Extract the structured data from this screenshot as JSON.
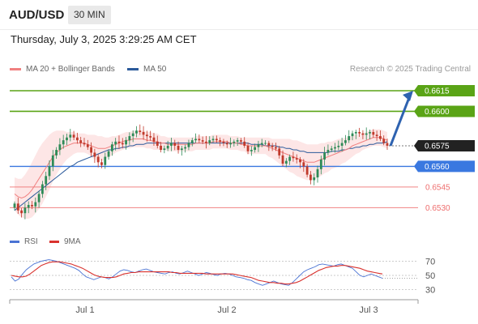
{
  "header": {
    "symbol": "AUD/USD",
    "timeframe": "30 MIN",
    "datetime": "Thursday, July 3, 2025 3:29:25 AM CET"
  },
  "legend": {
    "ma20_label": "MA 20 + Bollinger Bands",
    "ma50_label": "MA 50",
    "credit": "Research © 2025 Trading Central"
  },
  "rsi_legend": {
    "rsi_label": "RSI",
    "ma_label": "9MA"
  },
  "colors": {
    "ma20": "#f08080",
    "ma50": "#2b5a9b",
    "bollinger_fill": "#fde3e3",
    "candle_up": "#2e8b57",
    "candle_down": "#c0392b",
    "target_green": "#5aa416",
    "pivot_blue": "#3a78e0",
    "support_red": "#ee6e6e",
    "current_price": "#222222",
    "rsi": "#4a73d4",
    "rsi_ma": "#d9322e",
    "arrow": "#2e62b0"
  },
  "chart_data": {
    "type": "candlestick",
    "price_range": [
      0.6522,
      0.6625
    ],
    "x_labels": [
      "Jul 1",
      "Jul 2",
      "Jul 3"
    ],
    "levels": [
      {
        "value": 0.6615,
        "label": "0.6615",
        "kind": "target"
      },
      {
        "value": 0.66,
        "label": "0.6600",
        "kind": "target"
      },
      {
        "value": 0.6575,
        "label": "0.6575",
        "kind": "current"
      },
      {
        "value": 0.656,
        "label": "0.6560",
        "kind": "pivot"
      },
      {
        "value": 0.6545,
        "label": "0.6545",
        "kind": "support"
      },
      {
        "value": 0.653,
        "label": "0.6530",
        "kind": "support"
      }
    ],
    "price_path": [
      0.6533,
      0.6528,
      0.6526,
      0.653,
      0.6532,
      0.6531,
      0.6534,
      0.654,
      0.6547,
      0.6553,
      0.656,
      0.6568,
      0.6572,
      0.6576,
      0.6579,
      0.6581,
      0.6583,
      0.6581,
      0.6579,
      0.6577,
      0.6576,
      0.6574,
      0.657,
      0.6567,
      0.6563,
      0.6561,
      0.6567,
      0.6571,
      0.6576,
      0.6578,
      0.6577,
      0.6576,
      0.6579,
      0.6582,
      0.6584,
      0.6586,
      0.6585,
      0.6583,
      0.6582,
      0.6581,
      0.6578,
      0.6575,
      0.6572,
      0.6573,
      0.6575,
      0.6577,
      0.6575,
      0.6572,
      0.6573,
      0.6574,
      0.6577,
      0.6579,
      0.658,
      0.6579,
      0.6578,
      0.6577,
      0.6579,
      0.658,
      0.6579,
      0.6578,
      0.6577,
      0.6576,
      0.6577,
      0.6578,
      0.6579,
      0.6578,
      0.6575,
      0.6571,
      0.6572,
      0.6574,
      0.6576,
      0.6577,
      0.6577,
      0.6575,
      0.6574,
      0.6573,
      0.6568,
      0.6562,
      0.6564,
      0.6567,
      0.6566,
      0.6565,
      0.6563,
      0.656,
      0.6554,
      0.655,
      0.6552,
      0.6558,
      0.6565,
      0.657,
      0.6572,
      0.6573,
      0.6574,
      0.6575,
      0.6577,
      0.6579,
      0.6582,
      0.6584,
      0.6585,
      0.6584,
      0.6583,
      0.6584,
      0.6585,
      0.6583,
      0.6582,
      0.658,
      0.6577,
      0.6575
    ],
    "ma20": [
      0.654,
      0.6538,
      0.6537,
      0.6538,
      0.654,
      0.6543,
      0.6547,
      0.6551,
      0.6555,
      0.6559,
      0.6563,
      0.6567,
      0.657,
      0.6572,
      0.6574,
      0.6575,
      0.6576,
      0.6577,
      0.6577,
      0.6577,
      0.6577,
      0.6576,
      0.6575,
      0.6574,
      0.6573,
      0.6573,
      0.6573,
      0.6574,
      0.6575,
      0.6576,
      0.6577,
      0.6578,
      0.6579,
      0.6579,
      0.658,
      0.658,
      0.658,
      0.658,
      0.6579,
      0.6579,
      0.6578,
      0.6578,
      0.6577,
      0.6577,
      0.6576,
      0.6576,
      0.6576,
      0.6576,
      0.6576,
      0.6576,
      0.6576,
      0.6576,
      0.6577,
      0.6577,
      0.6577,
      0.6577,
      0.6577,
      0.6578,
      0.6578,
      0.6578,
      0.6578,
      0.6578,
      0.6577,
      0.6577,
      0.6577,
      0.6576,
      0.6576,
      0.6575,
      0.6575,
      0.6575,
      0.6575,
      0.6575,
      0.6575,
      0.6574,
      0.6573,
      0.6572,
      0.6571,
      0.657,
      0.6569,
      0.6568,
      0.6567,
      0.6566,
      0.6565,
      0.6564,
      0.6563,
      0.6563,
      0.6563,
      0.6564,
      0.6565,
      0.6566,
      0.6567,
      0.6568,
      0.6569,
      0.657,
      0.6571,
      0.6572,
      0.6573,
      0.6575,
      0.6576,
      0.6577,
      0.6578,
      0.6579,
      0.658,
      0.6581,
      0.6581,
      0.6581,
      0.658,
      0.6579
    ],
    "ma50": [
      0.6528,
      0.653,
      0.6532,
      0.6534,
      0.6536,
      0.6538,
      0.654,
      0.6542,
      0.6544,
      0.6546,
      0.6548,
      0.655,
      0.6552,
      0.6554,
      0.6556,
      0.6558,
      0.656,
      0.6561,
      0.6563,
      0.6564,
      0.6565,
      0.6566,
      0.6567,
      0.6568,
      0.6569,
      0.657,
      0.6571,
      0.6572,
      0.6572,
      0.6573,
      0.6573,
      0.6574,
      0.6574,
      0.6575,
      0.6575,
      0.6576,
      0.6576,
      0.6576,
      0.6577,
      0.6577,
      0.6577,
      0.6577,
      0.6577,
      0.6577,
      0.6577,
      0.6577,
      0.6577,
      0.6577,
      0.6577,
      0.6577,
      0.6577,
      0.6577,
      0.6577,
      0.6577,
      0.6577,
      0.6577,
      0.6577,
      0.6577,
      0.6577,
      0.6577,
      0.6577,
      0.6577,
      0.6577,
      0.6577,
      0.6577,
      0.6577,
      0.6577,
      0.6577,
      0.6576,
      0.6576,
      0.6576,
      0.6576,
      0.6575,
      0.6575,
      0.6575,
      0.6575,
      0.6574,
      0.6574,
      0.6573,
      0.6573,
      0.6572,
      0.6572,
      0.6571,
      0.6571,
      0.657,
      0.657,
      0.657,
      0.657,
      0.657,
      0.657,
      0.657,
      0.6571,
      0.6571,
      0.6571,
      0.6572,
      0.6572,
      0.6573,
      0.6573,
      0.6574,
      0.6574,
      0.6575,
      0.6575,
      0.6576,
      0.6576,
      0.6577,
      0.6577,
      0.6577,
      0.6578
    ],
    "bollinger_width": [
      0.0012,
      0.0013,
      0.0014,
      0.0016,
      0.0018,
      0.002,
      0.0021,
      0.0022,
      0.0022,
      0.0021,
      0.002,
      0.0018,
      0.0016,
      0.0014,
      0.0012,
      0.001,
      0.0009,
      0.0008,
      0.0007,
      0.0007,
      0.0007,
      0.0007,
      0.0008,
      0.0009,
      0.0009,
      0.0009,
      0.0008,
      0.0007,
      0.0007,
      0.0006,
      0.0006,
      0.0006,
      0.0006,
      0.0006,
      0.0006,
      0.0006,
      0.0006,
      0.0006,
      0.0006,
      0.0006,
      0.0006,
      0.0006,
      0.0005,
      0.0005,
      0.0005,
      0.0005,
      0.0005,
      0.0005,
      0.0005,
      0.0005,
      0.0005,
      0.0005,
      0.0005,
      0.0005,
      0.0005,
      0.0005,
      0.0005,
      0.0005,
      0.0005,
      0.0005,
      0.0005,
      0.0005,
      0.0005,
      0.0005,
      0.0005,
      0.0005,
      0.0005,
      0.0006,
      0.0006,
      0.0006,
      0.0006,
      0.0006,
      0.0006,
      0.0007,
      0.0007,
      0.0008,
      0.0009,
      0.001,
      0.0011,
      0.0012,
      0.0012,
      0.0013,
      0.0013,
      0.0013,
      0.0013,
      0.0013,
      0.0013,
      0.0012,
      0.0012,
      0.0011,
      0.0011,
      0.001,
      0.001,
      0.001,
      0.0009,
      0.0009,
      0.0008,
      0.0008,
      0.0007,
      0.0007,
      0.0006,
      0.0006,
      0.0006,
      0.0006,
      0.0006,
      0.0006,
      0.0006,
      0.0006
    ],
    "projection": {
      "from": 0.6575,
      "to": 0.6615
    },
    "rsi": {
      "levels": [
        70,
        50,
        30
      ],
      "range": [
        25,
        75
      ],
      "rsi_values": [
        48,
        42,
        45,
        52,
        58,
        62,
        66,
        68,
        70,
        71,
        72,
        71,
        70,
        68,
        66,
        64,
        62,
        60,
        57,
        52,
        48,
        46,
        44,
        46,
        48,
        47,
        45,
        48,
        52,
        56,
        58,
        57,
        55,
        54,
        56,
        58,
        59,
        57,
        55,
        54,
        53,
        52,
        54,
        55,
        53,
        52,
        54,
        56,
        54,
        52,
        50,
        52,
        54,
        53,
        51,
        50,
        52,
        53,
        52,
        50,
        48,
        47,
        46,
        44,
        43,
        40,
        38,
        36,
        38,
        40,
        42,
        40,
        38,
        37,
        36,
        40,
        45,
        50,
        55,
        58,
        60,
        62,
        65,
        66,
        65,
        64,
        63,
        65,
        66,
        64,
        62,
        60,
        55,
        50,
        48,
        50,
        52,
        50,
        48,
        46
      ],
      "ma_values": [
        50,
        49,
        48,
        48,
        49,
        52,
        56,
        60,
        64,
        66,
        68,
        69,
        69,
        69,
        68,
        67,
        66,
        64,
        62,
        60,
        57,
        54,
        51,
        49,
        48,
        47,
        47,
        47,
        48,
        50,
        52,
        53,
        54,
        54,
        55,
        55,
        55,
        55,
        55,
        55,
        55,
        55,
        55,
        54,
        54,
        53,
        53,
        53,
        53,
        53,
        53,
        53,
        52,
        52,
        52,
        52,
        52,
        52,
        52,
        52,
        51,
        50,
        49,
        48,
        47,
        45,
        43,
        42,
        41,
        40,
        40,
        39,
        39,
        38,
        38,
        39,
        40,
        42,
        45,
        48,
        51,
        54,
        57,
        59,
        61,
        62,
        63,
        63,
        64,
        64,
        63,
        62,
        61,
        60,
        58,
        56,
        55,
        54,
        53,
        52
      ]
    }
  }
}
